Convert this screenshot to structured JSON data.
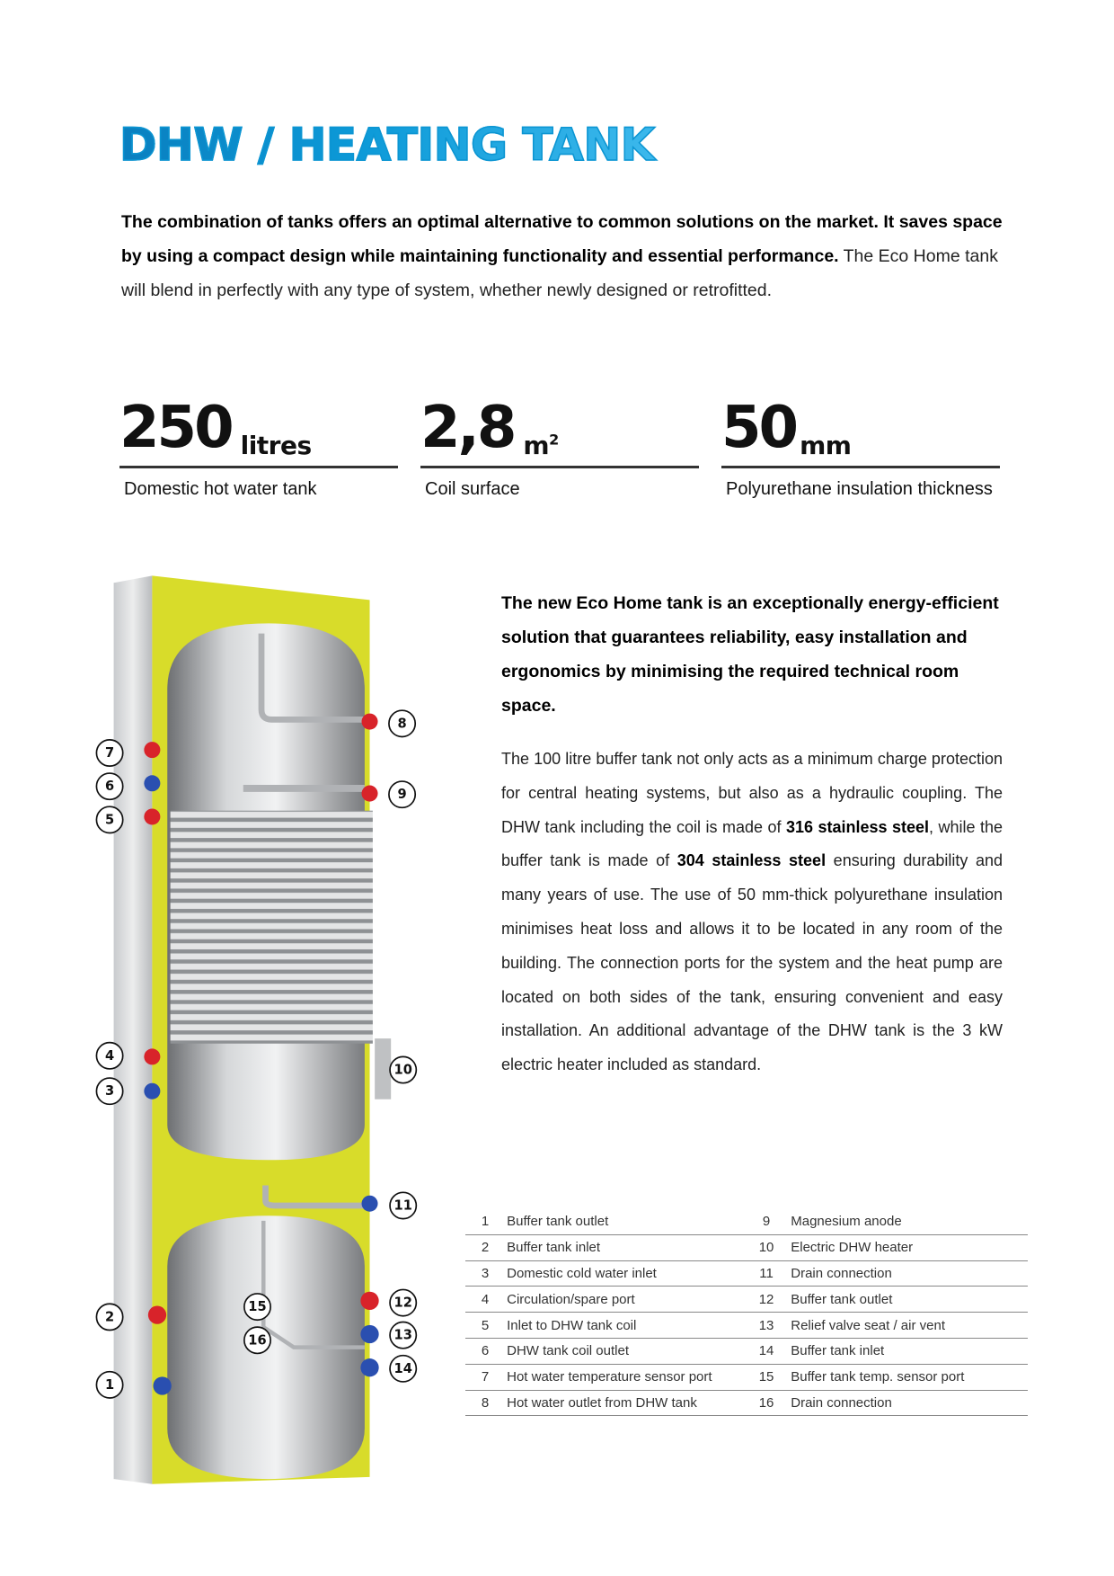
{
  "title": "DHW / HEATING TANK",
  "intro": {
    "bold": "The combination of tanks offers an optimal alternative to common solutions on the market. It saves space by using a compact design while maintaining functionality and essential performance.",
    "regular": " The Eco Home tank will blend in perfectly with any type of system, whether newly designed or retrofitted."
  },
  "stats": [
    {
      "value": "250",
      "unit": "litres",
      "label": "Domestic hot water tank"
    },
    {
      "value": "2,8",
      "unit": "m",
      "unit_sup": "2",
      "label": "Coil surface"
    },
    {
      "value": "50",
      "unit": "mm",
      "label": "Polyurethane insulation thickness"
    }
  ],
  "lead": "The new Eco Home tank is an exceptionally energy-efficient solution that guarantees reliability, easy installation and ergonomics by minimising the required technical room space.",
  "body": {
    "p1": "The 100 litre buffer tank not only acts as a minimum charge protection for central heating systems, but also as a hydraulic coupling. The DHW tank including the coil is made of ",
    "b1": "316 stainless steel",
    "p2": ", while the buffer tank is made of ",
    "b2": "304 stainless steel",
    "p3": " ensuring durability and many years of use. The use of 50 mm-thick polyurethane insulation minimises heat loss and allows it to be located in any room of the building. The connection ports for the system and the heat pump are located on both sides of the tank, ensuring convenient and easy installation. An additional advantage of the DHW tank is the 3 kW electric heater included as standard."
  },
  "legend": [
    {
      "n": "1",
      "label": "Buffer tank outlet"
    },
    {
      "n": "2",
      "label": "Buffer tank inlet"
    },
    {
      "n": "3",
      "label": "Domestic cold water inlet"
    },
    {
      "n": "4",
      "label": "Circulation/spare port"
    },
    {
      "n": "5",
      "label": "Inlet to DHW tank coil"
    },
    {
      "n": "6",
      "label": "DHW tank coil outlet"
    },
    {
      "n": "7",
      "label": "Hot water temperature sensor port"
    },
    {
      "n": "8",
      "label": "Hot water outlet from DHW tank"
    },
    {
      "n": "9",
      "label": "Magnesium anode"
    },
    {
      "n": "10",
      "label": "Electric DHW heater"
    },
    {
      "n": "11",
      "label": "Drain connection"
    },
    {
      "n": "12",
      "label": "Buffer tank outlet"
    },
    {
      "n": "13",
      "label": "Relief valve seat / air vent"
    },
    {
      "n": "14",
      "label": "Buffer tank inlet"
    },
    {
      "n": "15",
      "label": "Buffer tank temp. sensor port"
    },
    {
      "n": "16",
      "label": "Drain connection"
    }
  ],
  "colors": {
    "title_start": "#0a7fbf",
    "title_end": "#3cb8ec",
    "insulation": "#d8dc2a",
    "hot_port": "#d8232a",
    "cold_port": "#2a4fb0"
  }
}
